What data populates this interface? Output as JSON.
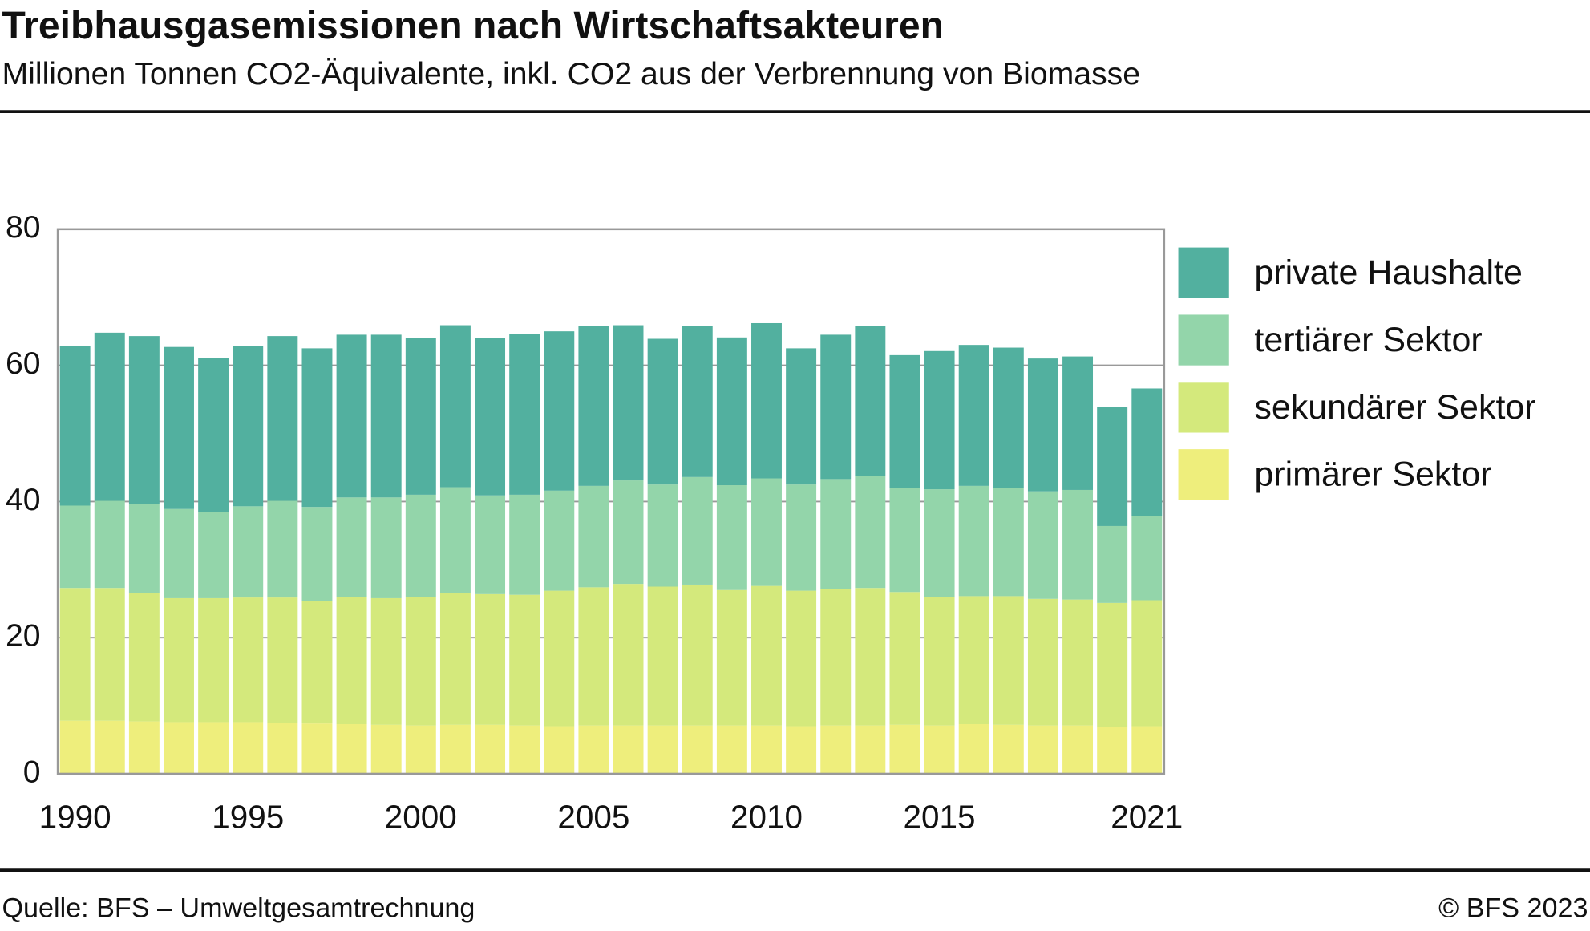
{
  "chart_data": {
    "type": "stacked-bar",
    "title": "Treibhausgasemissionen nach Wirtschaftsakteuren",
    "subtitle": "Millionen Tonnen CO2-Äquivalente, inkl. CO2 aus der Verbrennung von Biomasse",
    "source": "Quelle: BFS – Umweltgesamtrechnung",
    "credit": "© BFS 2023",
    "categories": [
      "1990",
      null,
      null,
      null,
      null,
      "1995",
      null,
      null,
      null,
      null,
      "2000",
      null,
      null,
      null,
      null,
      "2005",
      null,
      null,
      null,
      null,
      "2010",
      null,
      null,
      null,
      null,
      "2015",
      null,
      null,
      null,
      null,
      null,
      "2021"
    ],
    "series": [
      {
        "name": "primärer Sektor",
        "color": "#eeee7c",
        "values": [
          7.8,
          7.8,
          7.7,
          7.6,
          7.6,
          7.6,
          7.5,
          7.4,
          7.3,
          7.2,
          7.1,
          7.2,
          7.2,
          7.1,
          7.0,
          7.1,
          7.1,
          7.1,
          7.1,
          7.1,
          7.1,
          7.0,
          7.1,
          7.1,
          7.2,
          7.1,
          7.3,
          7.2,
          7.1,
          7.1,
          6.9,
          7.0
        ]
      },
      {
        "name": "sekundärer Sektor",
        "color": "#d4e97c",
        "values": [
          19.5,
          19.5,
          18.9,
          18.2,
          18.2,
          18.3,
          18.4,
          18.0,
          18.7,
          18.6,
          18.9,
          19.4,
          19.2,
          19.2,
          19.9,
          20.3,
          20.8,
          20.4,
          20.7,
          19.9,
          20.5,
          19.9,
          20.0,
          20.2,
          19.5,
          18.9,
          18.8,
          18.9,
          18.6,
          18.5,
          18.2,
          18.5
        ]
      },
      {
        "name": "tertiärer Sektor",
        "color": "#93d5aa",
        "values": [
          12.1,
          12.8,
          13.0,
          13.1,
          12.7,
          13.4,
          14.2,
          13.8,
          14.6,
          14.8,
          15.0,
          15.5,
          14.5,
          14.7,
          14.7,
          14.9,
          15.2,
          15.0,
          15.8,
          15.4,
          15.8,
          15.6,
          16.2,
          16.4,
          15.3,
          15.8,
          16.2,
          15.9,
          15.8,
          16.1,
          11.3,
          12.4
        ]
      },
      {
        "name": "private Haushalte",
        "color": "#52b09f",
        "values": [
          23.5,
          24.7,
          24.7,
          23.8,
          22.6,
          23.5,
          24.2,
          23.3,
          23.9,
          23.9,
          23.0,
          23.8,
          23.1,
          23.6,
          23.4,
          23.5,
          22.8,
          21.4,
          22.2,
          21.7,
          22.8,
          20.0,
          21.2,
          22.1,
          19.5,
          20.3,
          20.7,
          20.6,
          19.5,
          19.6,
          17.5,
          18.7
        ]
      }
    ],
    "ylim": [
      0,
      80
    ],
    "yticks": [
      0,
      20,
      40,
      60,
      80
    ],
    "grid": true
  }
}
